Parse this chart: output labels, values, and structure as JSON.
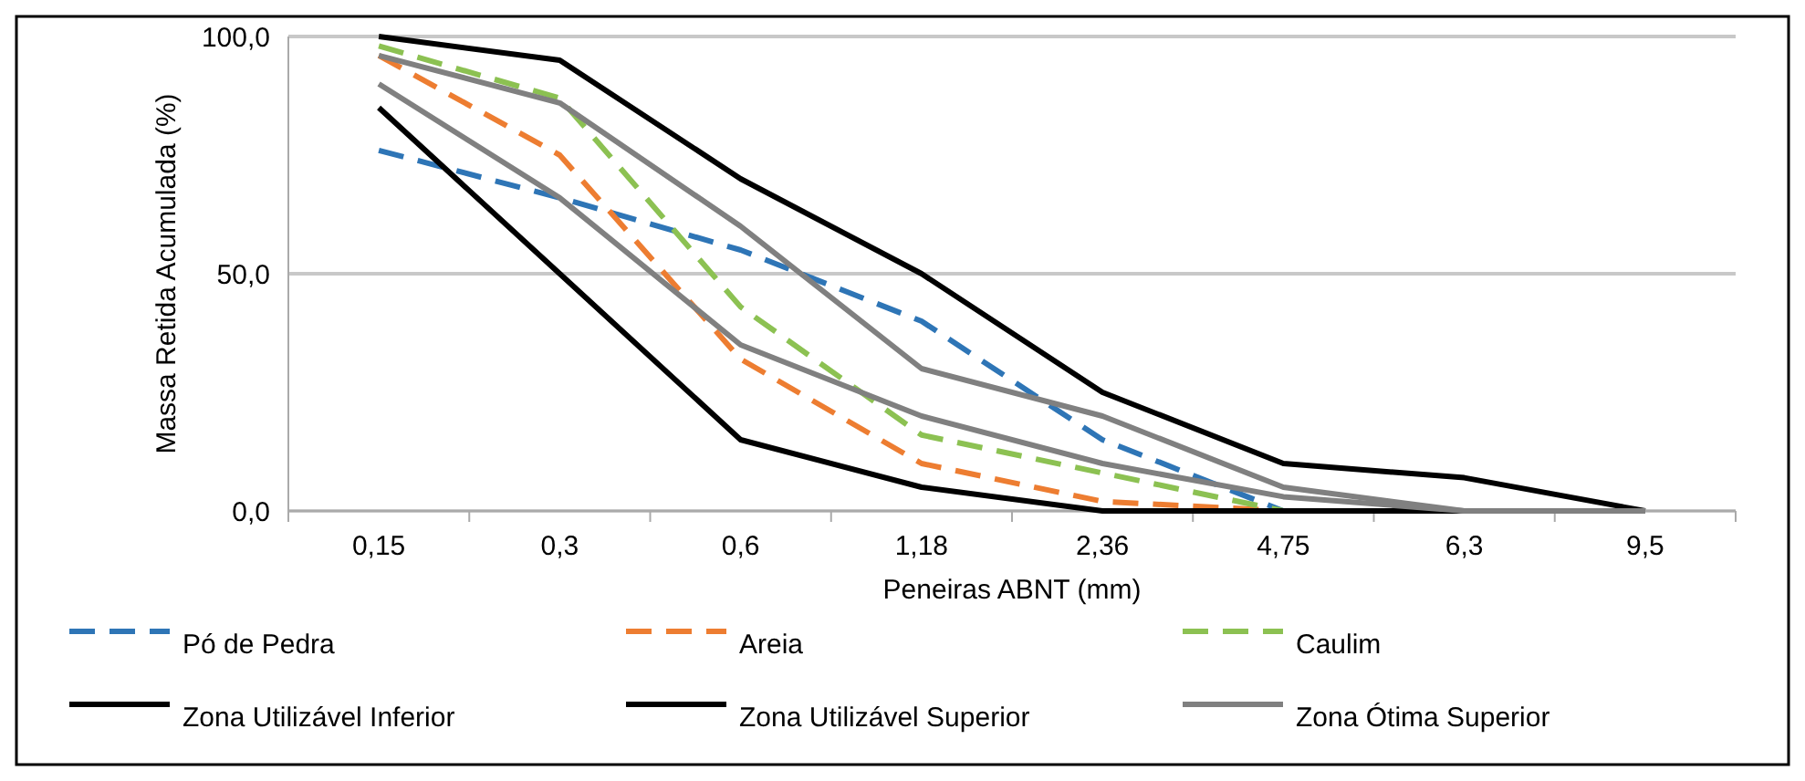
{
  "chart_data": {
    "type": "line",
    "xlabel": "Peneiras ABNT (mm)",
    "ylabel": "Massa Retida Acumulada (%)",
    "categories": [
      "0,15",
      "0,3",
      "0,6",
      "1,18",
      "2,36",
      "4,75",
      "6,3",
      "9,5"
    ],
    "ylim": [
      0,
      100
    ],
    "yticks": [
      {
        "value": 0,
        "label": "0,0"
      },
      {
        "value": 50,
        "label": "50,0"
      },
      {
        "value": 100,
        "label": "100,0"
      }
    ],
    "grid": "y",
    "legend": "bottom",
    "marker": "none",
    "series": [
      {
        "name": "Pó de Pedra",
        "color": "#2e75b6",
        "line_style": "dashed",
        "values": [
          76,
          66,
          55,
          40,
          15,
          0,
          null,
          null
        ]
      },
      {
        "name": "Areia",
        "color": "#ed7d31",
        "line_style": "dashed",
        "values": [
          96,
          75,
          32,
          10,
          2,
          0,
          null,
          null
        ]
      },
      {
        "name": "Caulim",
        "color": "#8cc152",
        "line_style": "dashed",
        "values": [
          98,
          87,
          43,
          16,
          8,
          0,
          null,
          null
        ]
      },
      {
        "name": "Zona Utilizável Inferior",
        "color": "#000000",
        "line_style": "solid",
        "values": [
          85,
          50,
          15,
          5,
          0,
          0,
          0,
          0
        ]
      },
      {
        "name": "Zona Utilizável Superior",
        "color": "#000000",
        "line_style": "solid",
        "values": [
          100,
          95,
          70,
          50,
          25,
          10,
          7,
          0
        ]
      },
      {
        "name": "Zona Ótima Superior",
        "color": "#808080",
        "line_style": "solid",
        "values": [
          96,
          86,
          60,
          30,
          20,
          5,
          0,
          0
        ]
      },
      {
        "color": "#808080",
        "line_style": "solid",
        "values": [
          90,
          66,
          35,
          20,
          10,
          3,
          0,
          0
        ]
      }
    ]
  }
}
